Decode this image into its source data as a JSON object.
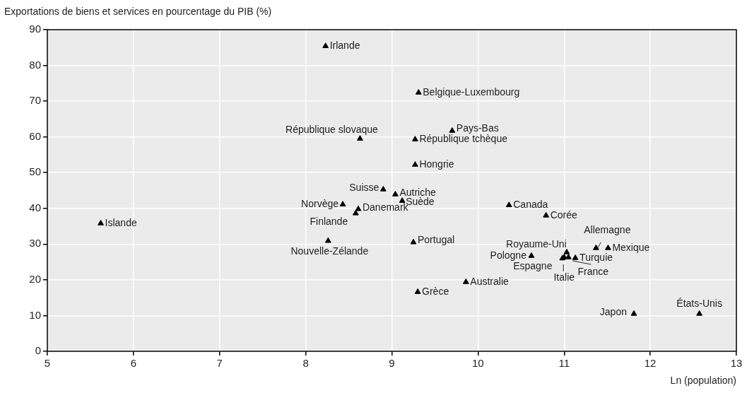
{
  "chart_data": {
    "type": "scatter",
    "ylabel": "Exportations de biens et services en pourcentage du PIB (%)",
    "xlabel": "Ln (population)",
    "x": [
      5.62,
      8.23,
      9.31,
      9.7,
      9.27,
      8.63,
      9.27,
      8.9,
      9.04,
      9.12,
      8.43,
      8.61,
      8.58,
      8.26,
      9.25,
      10.36,
      10.79,
      9.3,
      9.86,
      10.62,
      11.03,
      10.98,
      11.0,
      11.05,
      11.13,
      11.37,
      11.51,
      11.81,
      12.57
    ],
    "series": [
      {
        "color": "#000000",
        "values": [
          35.8,
          85.4,
          72.4,
          61.7,
          59.3,
          59.5,
          52.2,
          45.3,
          43.9,
          42.1,
          41.1,
          39.8,
          38.6,
          30.9,
          30.5,
          40.9,
          38.0,
          16.6,
          19.4,
          26.7,
          27.7,
          26.0,
          26.3,
          26.3,
          26.1,
          28.9,
          28.9,
          10.5,
          10.5
        ]
      }
    ],
    "annotations": [
      {
        "text": "Islande",
        "x": 5.62,
        "y": 35.8
      },
      {
        "text": "Irlande",
        "x": 8.23,
        "y": 85.4
      },
      {
        "text": "Belgique-Luxembourg",
        "x": 9.31,
        "y": 72.4
      },
      {
        "text": "Pays-Bas",
        "x": 9.7,
        "y": 61.7
      },
      {
        "text": "République tchèque",
        "x": 9.27,
        "y": 59.3
      },
      {
        "text": "République slovaque",
        "x": 8.63,
        "y": 59.5
      },
      {
        "text": "Hongrie",
        "x": 9.27,
        "y": 52.2
      },
      {
        "text": "Suisse",
        "x": 8.9,
        "y": 45.3
      },
      {
        "text": "Autriche",
        "x": 9.04,
        "y": 43.9
      },
      {
        "text": "Suède",
        "x": 9.12,
        "y": 42.1
      },
      {
        "text": "Norvège",
        "x": 8.43,
        "y": 41.1
      },
      {
        "text": "Danemark",
        "x": 8.61,
        "y": 39.8
      },
      {
        "text": "Finlande",
        "x": 8.58,
        "y": 38.6
      },
      {
        "text": "Nouvelle-Zélande",
        "x": 8.26,
        "y": 30.9
      },
      {
        "text": "Portugal",
        "x": 9.25,
        "y": 30.5
      },
      {
        "text": "Canada",
        "x": 10.36,
        "y": 40.9
      },
      {
        "text": "Corée",
        "x": 10.79,
        "y": 38.0
      },
      {
        "text": "Grèce",
        "x": 9.3,
        "y": 16.6
      },
      {
        "text": "Australie",
        "x": 9.86,
        "y": 19.4
      },
      {
        "text": "Pologne",
        "x": 10.62,
        "y": 26.7
      },
      {
        "text": "Royaume-Uni",
        "x": 11.03,
        "y": 27.7
      },
      {
        "text": "Espagne",
        "x": 10.98,
        "y": 26.0
      },
      {
        "text": "Italie",
        "x": 11.0,
        "y": 26.3
      },
      {
        "text": "France",
        "x": 11.05,
        "y": 26.3
      },
      {
        "text": "Turquie",
        "x": 11.13,
        "y": 26.1
      },
      {
        "text": "Allemagne",
        "x": 11.37,
        "y": 28.9
      },
      {
        "text": "Mexique",
        "x": 11.51,
        "y": 28.9
      },
      {
        "text": "Japon",
        "x": 11.81,
        "y": 10.5
      },
      {
        "text": "États-Unis",
        "x": 12.57,
        "y": 10.5
      }
    ],
    "xlim": [
      5,
      13
    ],
    "xticks": [
      5,
      6,
      7,
      8,
      9,
      10,
      11,
      12,
      13
    ],
    "ylim": [
      0,
      90
    ],
    "yticks": [
      0,
      10,
      20,
      30,
      40,
      50,
      60,
      70,
      80,
      90
    ],
    "grid": true,
    "marker": "triangle",
    "legend": false
  }
}
